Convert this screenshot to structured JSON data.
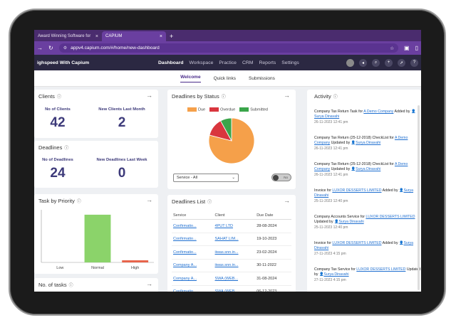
{
  "browser": {
    "tabs": [
      {
        "label": "Award Winning Software for "
      },
      {
        "label": "CAPIUM"
      }
    ],
    "new_tab": "+",
    "url": "appv4.capium.com/#/home/new-dashboard"
  },
  "app": {
    "brand": "ighspeed With Capium",
    "menu": [
      "Dashboard",
      "Workspace",
      "Practice",
      "CRM",
      "Reports",
      "Settings"
    ]
  },
  "subtabs": [
    "Welcome",
    "Quick links",
    "Submissions"
  ],
  "clients": {
    "title": "Clients",
    "no_label": "No of Clients",
    "no_value": "42",
    "new_label": "New Clients Last Month",
    "new_value": "2"
  },
  "deadlines": {
    "title": "Deadlines",
    "no_label": "No of Deadlines",
    "no_value": "24",
    "new_label": "New Deadlines Last Week",
    "new_value": "0"
  },
  "task_priority": {
    "title": "Task by Priority"
  },
  "tasks": {
    "title": "No. of tasks"
  },
  "status": {
    "title": "Deadlines by Status",
    "legend": [
      "Due",
      "Overdue",
      "Submitted"
    ],
    "service": "Service - All",
    "toggle": "No"
  },
  "chart_data": [
    {
      "type": "pie",
      "title": "Deadlines by Status",
      "categories": [
        "Due",
        "Overdue",
        "Submitted"
      ],
      "values": [
        79,
        13,
        8
      ],
      "colors": [
        "#f5a04a",
        "#d9363e",
        "#3aa54a"
      ]
    },
    {
      "type": "bar",
      "title": "Task by Priority",
      "categories": [
        "Low",
        "Normal",
        "High"
      ],
      "values": [
        0,
        68,
        3
      ],
      "ylim": [
        0,
        75
      ],
      "colors": [
        "#8bc34a",
        "#8bd36a",
        "#e8634a"
      ]
    }
  ],
  "deadlines_list": {
    "title": "Deadlines List",
    "columns": [
      "Service",
      "Client",
      "Due Date"
    ],
    "rows": [
      [
        "Confirmatio...",
        "4PUT LTD",
        "28-08-2024"
      ],
      [
        "Confirmatio...",
        "SAHAT LIM...",
        "19-10-2023"
      ],
      [
        "Confirmatio...",
        "iiwas.snn.in...",
        "23-02-2024"
      ],
      [
        "Company A...",
        "iiwas.snn.in...",
        "30-11-2022"
      ],
      [
        "Company A...",
        "SWA (WEB...",
        "31-08-2024"
      ],
      [
        "Confirmatio...",
        "SWA (WEB...",
        "06-12-2023"
      ]
    ]
  },
  "activity": {
    "title": "Activity",
    "items": [
      {
        "pre": "Company Tax Return Task for ",
        "link": "A Demo Company",
        "mid": " Added by",
        "user": "Surya Dinavahi",
        "time": "26-11-2023 12:41 pm"
      },
      {
        "pre": "Company Tax Return (25-12-2018) CheckList for ",
        "link": "A Demo Company",
        "mid": " Updated by",
        "user": "Surya Dinavahi",
        "time": "26-11-2023 12:41 pm"
      },
      {
        "pre": "Company Tax Return (25-12-2018) CheckList for ",
        "link": "A Demo Company",
        "mid": " Updated by",
        "user": "Surya Dinavahi",
        "time": "26-11-2023 12:41 pm"
      },
      {
        "pre": "Invoice for ",
        "link": "LUXOR DESSERTS LIMITED",
        "mid": " Added by",
        "user": "Surya Dinavahi",
        "time": "25-11-2023 12:40 pm"
      },
      {
        "pre": "Company Accounts Service for ",
        "link": "LUXOR DESSERTS LIMITED",
        "mid": " Updated by",
        "user": "Surya Dinavahi",
        "time": "25-11-2023 12:40 pm"
      },
      {
        "pre": "Invoice for ",
        "link": "LUXOR DESSERTS LIMITED",
        "mid": " Added by",
        "user": "Surya Dinavahi",
        "time": "27-11-2023 4:15 pm"
      },
      {
        "pre": "Company Tax Service for ",
        "link": "LUXOR DESSERTS LIMITED",
        "mid": " Updated by",
        "user": "Surya Dinavahi",
        "time": "27-11-2023 4:15 pm"
      }
    ]
  }
}
